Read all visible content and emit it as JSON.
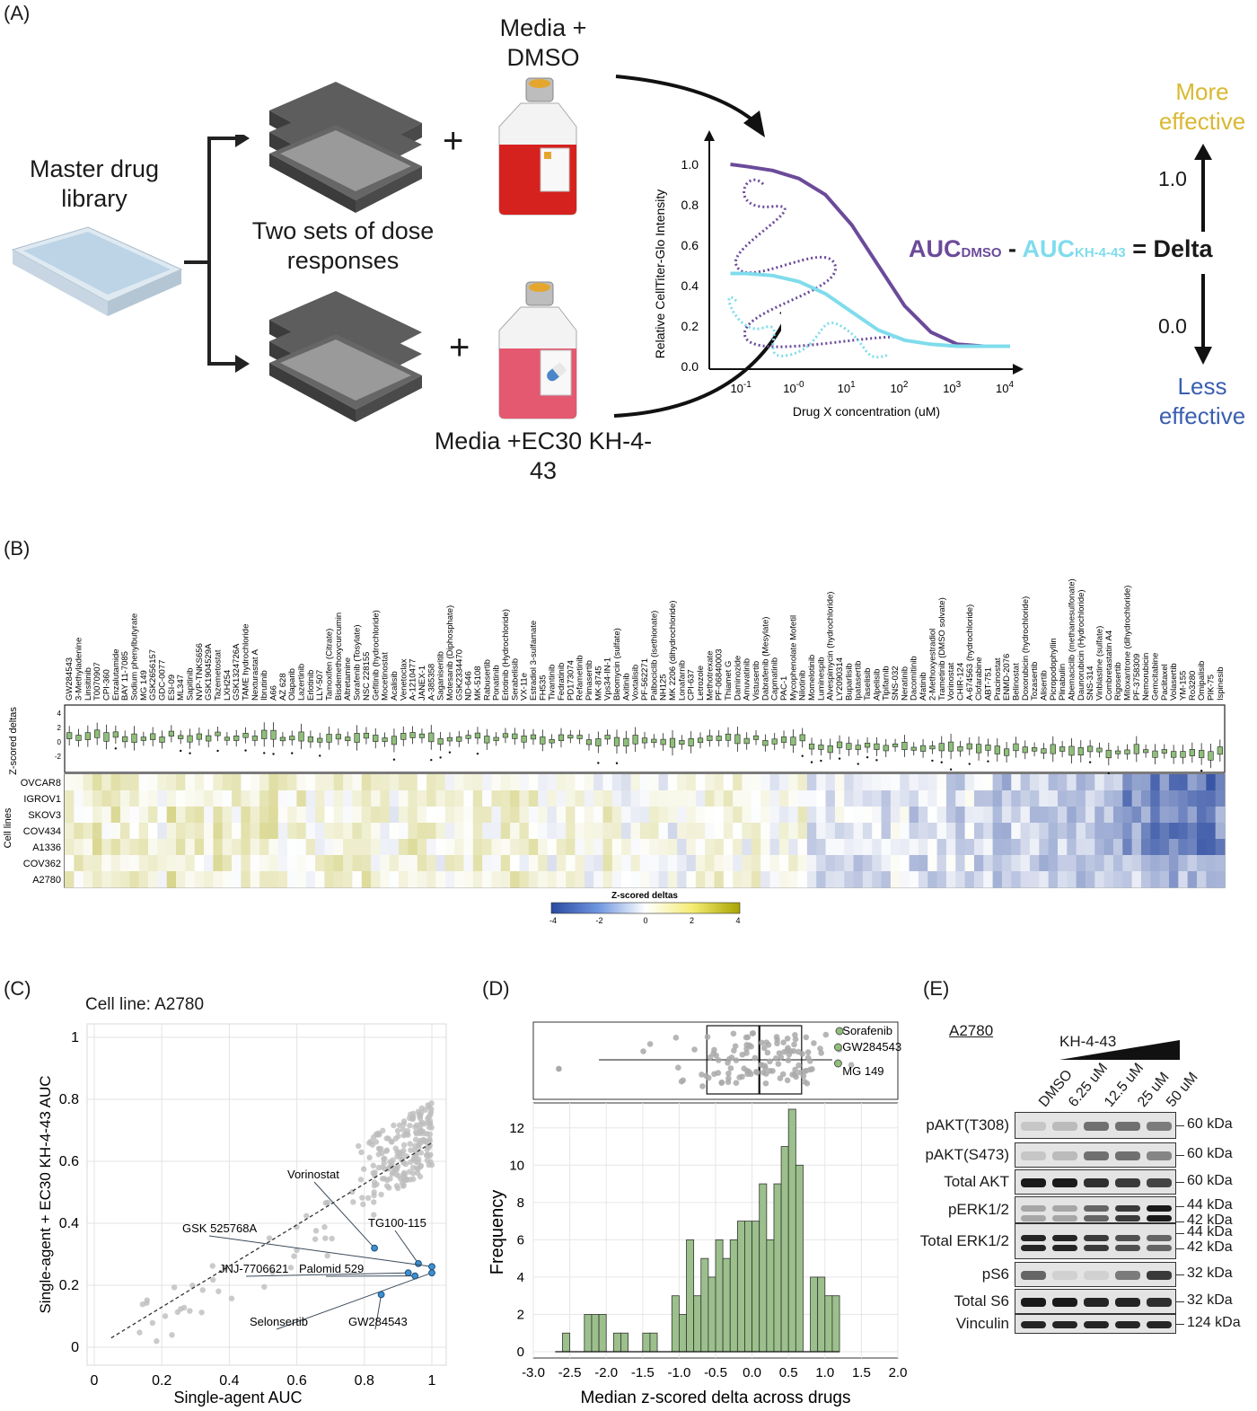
{
  "panels": {
    "a": "(A)",
    "b": "(B)",
    "c": "(C)",
    "d": "(D)",
    "e": "(E)"
  },
  "panel_a": {
    "library_label": "Master drug library",
    "dose_label": "Two sets of dose responses",
    "media_top": "Media + DMSO",
    "media_bottom": "Media +EC30 KH-4-43",
    "plus": "+",
    "more_effective": "More effective",
    "less_effective": "Less effective",
    "val_high": "1.0",
    "val_low": "0.0",
    "auc_dmso": "AUC",
    "auc_dmso_sub": "DMSO",
    "minus": "-",
    "auc_kh": "AUC",
    "auc_kh_sub": "KH-4-43",
    "equals_delta": "= Delta",
    "colors": {
      "dmso": "#6b4a9a",
      "kh": "#7fdcec",
      "more": "#d9b832",
      "less": "#3a5fb0"
    },
    "curve_plot": {
      "ylabel": "Relative CellTiter-Glo Intensity",
      "xlabel": "Drug X concentration (uM)",
      "yticks": [
        "0.0",
        "0.2",
        "0.4",
        "0.6",
        "0.8",
        "1.0"
      ],
      "xtick_base": "10",
      "xtick_exps": [
        "-1",
        "-0",
        "1",
        "2",
        "3",
        "4"
      ]
    }
  },
  "panel_b": {
    "box_ylabel": "Z-scored deltas",
    "box_yticks": [
      "4",
      "2",
      "0",
      "-2"
    ],
    "heat_ylabel": "Cell lines",
    "cell_lines": [
      "OVCAR8",
      "IGROV1",
      "SKOV3",
      "COV434",
      "A1336",
      "COV362",
      "A2780"
    ],
    "colorbar_title": "Z-scored deltas",
    "colorbar_ticks": [
      "-4",
      "-2",
      "0",
      "2",
      "4"
    ],
    "drugs": [
      "GW284543",
      "3-Methyladenine",
      "Linsitinib",
      "T0070907",
      "CPI-360",
      "Enzalutamide",
      "BAY 11-7085",
      "Sodium phenylbutyrate",
      "MG 149",
      "GSK2656157",
      "GDC-0077",
      "ESI-09",
      "ML347",
      "Sapitinib",
      "NVP-TNKS656",
      "GSK1904529A",
      "Tazemetostat",
      "LXH254",
      "GSK1324726A",
      "TAME hydrochloride",
      "Nexturastat A",
      "Ibrutinib",
      "A66",
      "AZ 628",
      "Olaparib",
      "Lazertinib",
      "Erlotinib",
      "LLY-507",
      "Tamoxifen (Citrate)",
      "Bisdemethoxycurcumin",
      "Altretamine",
      "Sorafenib (Tosylate)",
      "NSC 228155",
      "Gefitinib (hydrochloride)",
      "Mocetinostat",
      "Acalisib",
      "Venetoclax",
      "A-1210477",
      "JANEX-1",
      "A-385358",
      "Saganiseritib",
      "Motesanib (Diphosphate)",
      "GSK2334470",
      "ND-646",
      "MK-5108",
      "Rabusertib",
      "Ponatinib",
      "Erlotinib (Hydrochloride)",
      "Serabelisib",
      "VX-11e",
      "Estradiol 3-sulfamate",
      "FH535",
      "Tivantinib",
      "Fedratinib",
      "PD173074",
      "Refametinib",
      "Pimasertib",
      "MK-8745",
      "Vps34-IN-1",
      "Bleomycin (sulfate)",
      "Axitinib",
      "Voxtalisib",
      "PF-562271",
      "Palbociclib (isethionate)",
      "NH125",
      "MK 2206 (dihydrochloride)",
      "Lonafarnib",
      "CPI-637",
      "Letrozole",
      "Methotrexate",
      "PF-06840003",
      "Thiamet G",
      "Daminozide",
      "Amuvatinib",
      "Vistusertib",
      "Dabrafenib (Mesylate)",
      "Capmatinib",
      "PAC-1",
      "Mycophenolate Mofetil",
      "Nilotinib",
      "Momelotinib",
      "Luminespib",
      "Alvespimycin (hydrochloride)",
      "LY2090314",
      "Buparlisib",
      "Ipatasertib",
      "Taselisib",
      "Alpelisib",
      "Tipifarnib",
      "SNS-032",
      "Neratinib",
      "Dacomitinib",
      "Afatinib",
      "2-Methoxyestradiol",
      "Trametinib (DMSO solvate)",
      "Vorinostat",
      "CHIR-124",
      "A-674563 (hydrochloride)",
      "Clofarabine",
      "ABT-751",
      "Pracinostat",
      "ENMD-2076",
      "Belinostat",
      "Doxorubicin (hydrochloride)",
      "Tozasertib",
      "Alisertib",
      "Picropodophyllin",
      "Plinabulin",
      "Abemaciclib (methanesulfonate)",
      "Daunorubicin (Hydrochloride)",
      "SNS-314",
      "Vinblastine (sulfate)",
      "Combretastatin A4",
      "Rigosertib",
      "Mitoxantrone (dihydrochloride)",
      "PF-3758309",
      "Nemorubicin",
      "Gemcitabine",
      "Paclitaxel",
      "Volasertib",
      "YM-155",
      "Ro3280",
      "Omipalisib",
      "PIK-75",
      "Ispinesib"
    ]
  },
  "panel_c": {
    "title": "Cell line: A2780",
    "xlabel": "Single-agent AUC",
    "ylabel": "Single-agent + EC30 KH-4-43 AUC",
    "xticks": [
      "0",
      "0.2",
      "0.4",
      "0.6",
      "0.8",
      "1"
    ],
    "yticks": [
      "0",
      "0.2",
      "0.4",
      "0.6",
      "0.8",
      "1"
    ],
    "labels": [
      "Vorinostat",
      "TG100-115",
      "GSK 525768A",
      "JNJ-7706621",
      "Palomid 529",
      "Selonsertib",
      "GW284543"
    ],
    "highlight_color": "#3d8fd0"
  },
  "panel_d": {
    "xlabel": "Median z-scored delta across drugs",
    "ylabel": "Frequency",
    "xticks": [
      "-3.0",
      "-2.5",
      "-2.0",
      "-1.5",
      "-1.0",
      "-0.5",
      "0.0",
      "0.5",
      "1.0",
      "1.5",
      "2.0"
    ],
    "yticks": [
      "0",
      "2",
      "4",
      "6",
      "8",
      "10",
      "12"
    ],
    "box_labels": [
      "Sorafenib",
      "GW284543",
      "MG 149"
    ],
    "bar_color": "#9cc08c"
  },
  "panel_e": {
    "cell_line": "A2780",
    "treatment": "KH-4-43",
    "lanes": [
      "DMSO",
      "6.25 uM",
      "12.5 uM",
      "25 uM",
      "50 uM"
    ],
    "rows": [
      {
        "label": "pAKT(T308)",
        "kda": [
          "60 kDa"
        ]
      },
      {
        "label": "pAKT(S473)",
        "kda": [
          "60 kDa"
        ]
      },
      {
        "label": "Total AKT",
        "kda": [
          "60 kDa"
        ]
      },
      {
        "label": "pERK1/2",
        "kda": [
          "44 kDa",
          "42 kDa"
        ]
      },
      {
        "label": "Total ERK1/2",
        "kda": [
          "44 kDa",
          "42 kDa"
        ]
      },
      {
        "label": "pS6",
        "kda": [
          "32 kDa"
        ]
      },
      {
        "label": "Total S6",
        "kda": [
          "32 kDa"
        ]
      },
      {
        "label": "Vinculin",
        "kda": [
          "124 kDa"
        ]
      }
    ]
  },
  "chart_data": [
    {
      "type": "line",
      "panel": "A-inset",
      "title": "",
      "xlabel": "Drug X concentration (uM)",
      "ylabel": "Relative CellTiter-Glo Intensity",
      "x_log10": [
        -1.3,
        -1,
        -0.5,
        0,
        0.5,
        1,
        1.5,
        2,
        2.5,
        3,
        3.5,
        4
      ],
      "series": [
        {
          "name": "DMSO",
          "values": [
            1.0,
            0.99,
            0.97,
            0.93,
            0.85,
            0.7,
            0.5,
            0.3,
            0.17,
            0.11,
            0.1,
            0.1
          ]
        },
        {
          "name": "KH-4-43",
          "values": [
            0.46,
            0.46,
            0.45,
            0.42,
            0.36,
            0.27,
            0.18,
            0.13,
            0.11,
            0.1,
            0.1,
            0.1
          ]
        }
      ],
      "ylim": [
        0,
        1.0
      ]
    },
    {
      "type": "scatter",
      "panel": "C",
      "title": "Cell line: A2780",
      "xlabel": "Single-agent AUC",
      "ylabel": "Single-agent + EC30 KH-4-43 AUC",
      "xlim": [
        0,
        1
      ],
      "ylim": [
        0,
        1
      ],
      "highlighted": [
        {
          "label": "Vorinostat",
          "x": 0.83,
          "y": 0.32
        },
        {
          "label": "TG100-115",
          "x": 0.96,
          "y": 0.27
        },
        {
          "label": "GSK 525768A",
          "x": 1.0,
          "y": 0.26
        },
        {
          "label": "JNJ-7706621",
          "x": 0.93,
          "y": 0.24
        },
        {
          "label": "Palomid 529",
          "x": 0.95,
          "y": 0.23
        },
        {
          "label": "Selonsertib",
          "x": 1.0,
          "y": 0.24
        },
        {
          "label": "GW284543",
          "x": 0.85,
          "y": 0.17
        }
      ],
      "trend": {
        "x": [
          0.05,
          1.0
        ],
        "y": [
          0.03,
          0.66
        ]
      }
    },
    {
      "type": "bar",
      "panel": "D",
      "xlabel": "Median z-scored delta across drugs",
      "ylabel": "Frequency",
      "bin_centers": [
        -2.55,
        -2.45,
        -2.35,
        -2.25,
        -2.15,
        -2.05,
        -1.95,
        -1.85,
        -1.75,
        -1.65,
        -1.55,
        -1.45,
        -1.35,
        -1.25,
        -1.15,
        -1.05,
        -0.95,
        -0.85,
        -0.75,
        -0.65,
        -0.55,
        -0.45,
        -0.35,
        -0.25,
        -0.15,
        -0.05,
        0.05,
        0.15,
        0.25,
        0.35,
        0.45,
        0.55,
        0.65,
        0.75,
        0.85,
        0.95,
        1.05,
        1.15
      ],
      "values": [
        1,
        0,
        0,
        2,
        2,
        2,
        0,
        1,
        1,
        0,
        0,
        1,
        1,
        0,
        0,
        3,
        2,
        6,
        3,
        5,
        4,
        6,
        5,
        6,
        7,
        7,
        7,
        9,
        6,
        9,
        11,
        13,
        10,
        0,
        4,
        4,
        3,
        3
      ],
      "xlim": [
        -3.0,
        2.0
      ],
      "ylim": [
        0,
        13
      ]
    }
  ]
}
